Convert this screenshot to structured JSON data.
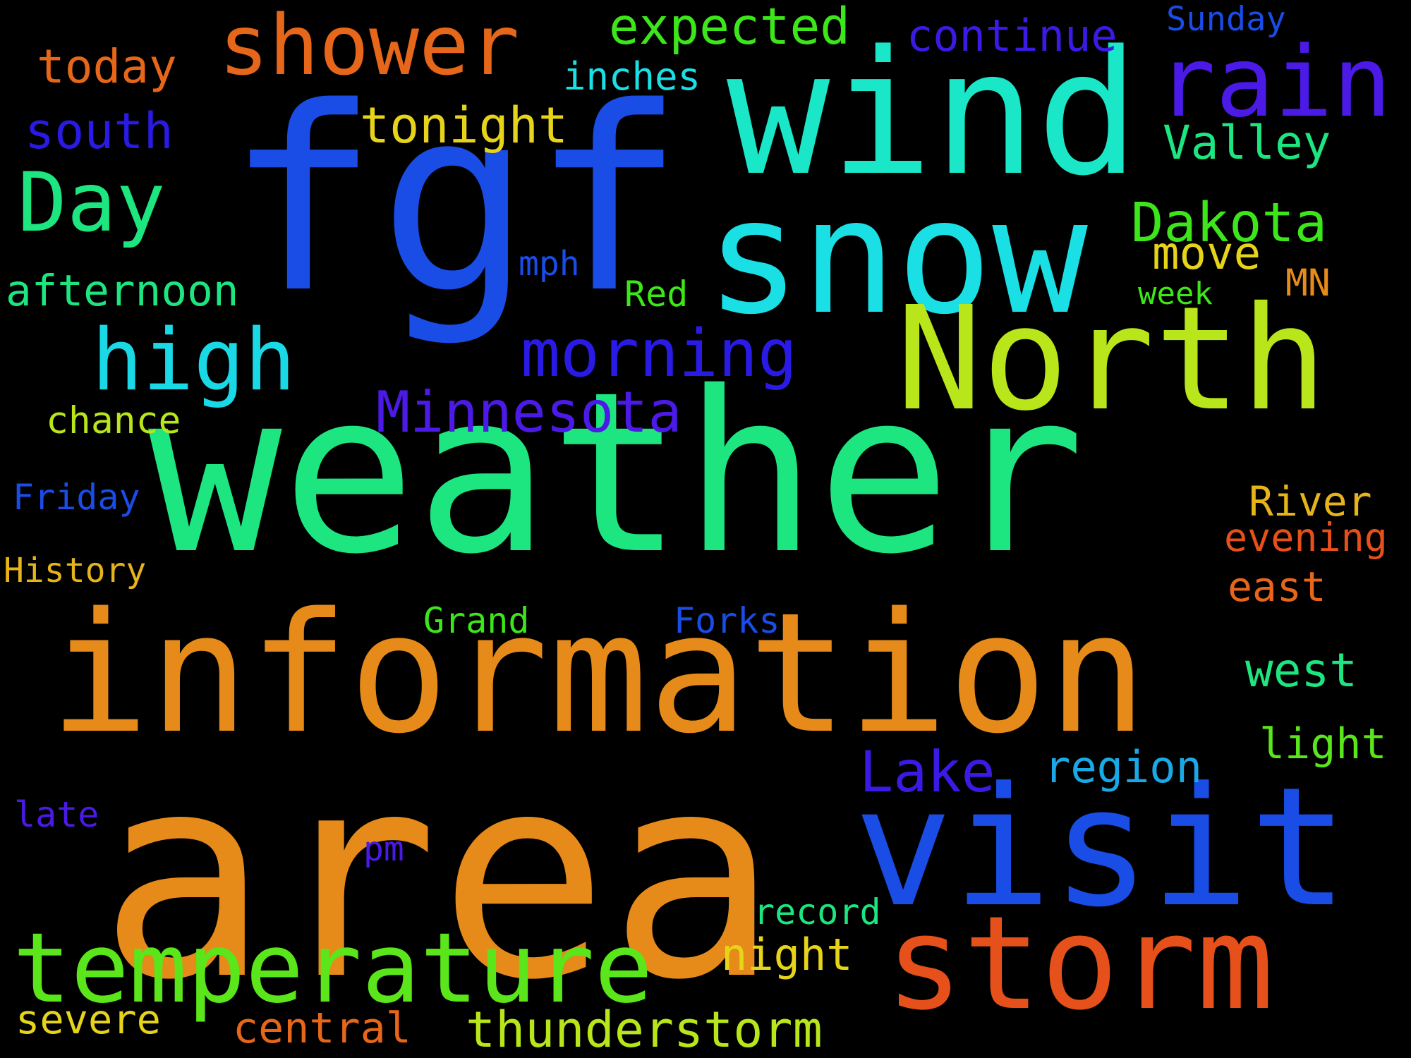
{
  "words": [
    {
      "text": "fgf",
      "color": "#1a4ce6"
    },
    {
      "text": "weather",
      "color": "#1de680"
    },
    {
      "text": "area",
      "color": "#e68a1a"
    },
    {
      "text": "information",
      "color": "#e68a1a"
    },
    {
      "text": "wind",
      "color": "#1ae6c8"
    },
    {
      "text": "snow",
      "color": "#1ae0e6"
    },
    {
      "text": "North",
      "color": "#b8e61a"
    },
    {
      "text": "visit",
      "color": "#1a4ce6"
    },
    {
      "text": "storm",
      "color": "#e6501a"
    },
    {
      "text": "temperature",
      "color": "#5ae61a"
    },
    {
      "text": "rain",
      "color": "#4b1ae6"
    },
    {
      "text": "shower",
      "color": "#e6661a"
    },
    {
      "text": "high",
      "color": "#1ad9e6"
    },
    {
      "text": "Day",
      "color": "#1de680"
    },
    {
      "text": "morning",
      "color": "#2a1ae6"
    },
    {
      "text": "Minnesota",
      "color": "#4b1ae6"
    },
    {
      "text": "Dakota",
      "color": "#3de61a"
    },
    {
      "text": "Lake",
      "color": "#3b1ae6"
    },
    {
      "text": "Valley",
      "color": "#1de680"
    },
    {
      "text": "expected",
      "color": "#3de61a"
    },
    {
      "text": "continue",
      "color": "#3b1ae6"
    },
    {
      "text": "tonight",
      "color": "#e6d41a"
    },
    {
      "text": "today",
      "color": "#e6661a"
    },
    {
      "text": "south",
      "color": "#2a1ae6"
    },
    {
      "text": "inches",
      "color": "#1ae0e6"
    },
    {
      "text": "Sunday",
      "color": "#1a4ce6"
    },
    {
      "text": "afternoon",
      "color": "#1de680"
    },
    {
      "text": "move",
      "color": "#e6d41a"
    },
    {
      "text": "mph",
      "color": "#1a4ce6"
    },
    {
      "text": "Red",
      "color": "#3de61a"
    },
    {
      "text": "week",
      "color": "#3de61a"
    },
    {
      "text": "MN",
      "color": "#e68a1a"
    },
    {
      "text": "chance",
      "color": "#b8e61a"
    },
    {
      "text": "Friday",
      "color": "#1a4ce6"
    },
    {
      "text": "River",
      "color": "#e6b41a"
    },
    {
      "text": "evening",
      "color": "#e6501a"
    },
    {
      "text": "History",
      "color": "#e6b41a"
    },
    {
      "text": "east",
      "color": "#e6661a"
    },
    {
      "text": "Grand",
      "color": "#3de61a"
    },
    {
      "text": "Forks",
      "color": "#1a4ce6"
    },
    {
      "text": "west",
      "color": "#1de680"
    },
    {
      "text": "light",
      "color": "#5ae61a"
    },
    {
      "text": "region",
      "color": "#1aa8e6"
    },
    {
      "text": "late",
      "color": "#4b1ae6"
    },
    {
      "text": "pm",
      "color": "#4b1ae6"
    },
    {
      "text": "record",
      "color": "#1de680"
    },
    {
      "text": "night",
      "color": "#e6d41a"
    },
    {
      "text": "severe",
      "color": "#e6d41a"
    },
    {
      "text": "central",
      "color": "#e6661a"
    },
    {
      "text": "thunderstorm",
      "color": "#b8e61a"
    }
  ]
}
